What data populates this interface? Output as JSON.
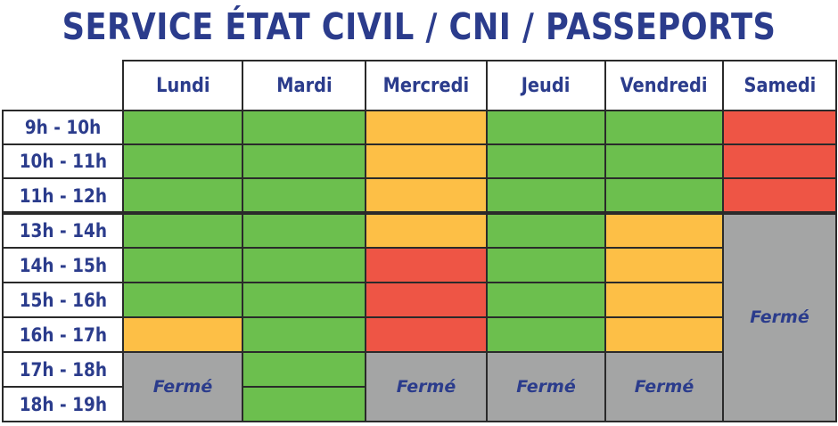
{
  "title": "SERVICE ÉTAT CIVIL / CNI / PASSEPORTS",
  "days": [
    "Lundi",
    "Mardi",
    "Mercredi",
    "Jeudi",
    "Vendredi",
    "Samedi"
  ],
  "times": [
    "9h - 10h",
    "10h - 11h",
    "11h - 12h",
    "13h - 14h",
    "14h - 15h",
    "15h - 16h",
    "16h - 17h",
    "17h - 18h",
    "18h - 19h"
  ],
  "colors": {
    "green": "#6cbf4e",
    "orange": "#fdbf46",
    "red": "#ee5545",
    "closed": "#a4a5a5",
    "text": "#2b3c8c"
  },
  "closed_label": "Fermé",
  "schedule": [
    [
      "green",
      "green",
      "green",
      "green",
      "green",
      "green",
      "orange",
      "closed",
      "closed"
    ],
    [
      "green",
      "green",
      "green",
      "green",
      "green",
      "green",
      "green",
      "green",
      "green"
    ],
    [
      "orange",
      "orange",
      "orange",
      "orange",
      "red",
      "red",
      "red",
      "closed",
      "closed"
    ],
    [
      "green",
      "green",
      "green",
      "green",
      "green",
      "green",
      "green",
      "closed",
      "closed"
    ],
    [
      "green",
      "green",
      "green",
      "orange",
      "orange",
      "orange",
      "orange",
      "closed",
      "closed"
    ],
    [
      "red",
      "red",
      "red",
      "closed",
      "closed",
      "closed",
      "closed",
      "closed",
      "closed"
    ]
  ]
}
